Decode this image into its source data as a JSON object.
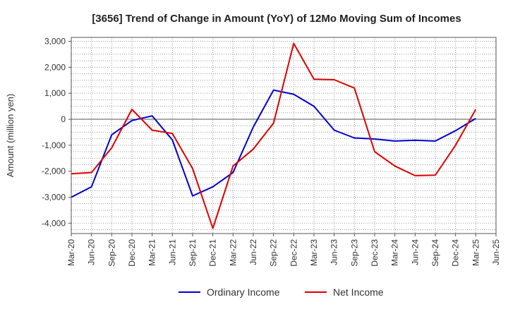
{
  "chart_data": {
    "type": "line",
    "title": "[3656]  Trend of Change in Amount (YoY) of 12Mo Moving Sum of Incomes",
    "xlabel": "",
    "ylabel": "Amount (million yen)",
    "ylim": [
      -4400,
      3150
    ],
    "yticks": [
      3000,
      2000,
      1000,
      0,
      -1000,
      -2000,
      -3000,
      -4000
    ],
    "ytick_labels": [
      "3,000",
      "2,000",
      "1,000",
      "0",
      "-1,000",
      "-2,000",
      "-3,000",
      "-4,000"
    ],
    "x_tick_labels": [
      "Mar-20",
      "Jun-20",
      "Sep-20",
      "Dec-20",
      "Mar-21",
      "Jun-21",
      "Sep-21",
      "Dec-21",
      "Mar-22",
      "Jun-22",
      "Sep-22",
      "Dec-22",
      "Mar-23",
      "Jun-23",
      "Sep-23",
      "Dec-23",
      "Mar-24",
      "Jun-24",
      "Sep-24",
      "Dec-24",
      "Mar-25",
      "Jun-25"
    ],
    "grid": true,
    "legend": "bottom",
    "series": [
      {
        "name": "Ordinary Income",
        "color": "#0000cc",
        "values": [
          -3000,
          -2600,
          -600,
          -50,
          130,
          -800,
          -2950,
          -2600,
          -2050,
          -300,
          1120,
          960,
          500,
          -420,
          -720,
          -760,
          -840,
          -810,
          -840,
          -440,
          30
        ]
      },
      {
        "name": "Net Income",
        "color": "#dd0000",
        "values": [
          -2100,
          -2050,
          -1100,
          380,
          -420,
          -550,
          -1900,
          -4200,
          -1800,
          -1150,
          -150,
          2920,
          1540,
          1520,
          1200,
          -1250,
          -1800,
          -2170,
          -2150,
          -1000,
          380
        ]
      }
    ]
  }
}
